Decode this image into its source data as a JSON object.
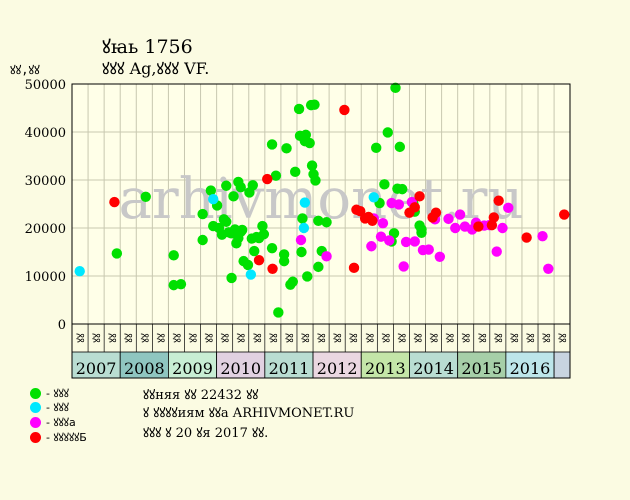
{
  "header": {
    "title": "ꙋꙗь 1756",
    "subtitle": "ꙋꙋꙋ Ag,ꙋꙋꙋ VF.",
    "ylabel": "ꙋꙋ,ꙋꙋ"
  },
  "watermark": "arhivmonet.ru",
  "legend": [
    {
      "label": "- ꙋꙋꙋ",
      "color": "#00e000"
    },
    {
      "label": "- ꙋꙋꙋ",
      "color": "#00e8ff"
    },
    {
      "label": "- ꙋꙋꙋa",
      "color": "#ff00ff"
    },
    {
      "label": "- ꙋꙋꙋꙋꙋБ",
      "color": "#ff0000"
    }
  ],
  "notes": [
    "ꙋꙋняя ꙋꙋ 22432 ꙋꙋ",
    "ꙋ ꙋꙋꙋꙋиям ꙋꙋa ARHIVMONET.RU",
    "ꙋꙋꙋ ꙋ 20 ꙋя 2017 ꙋꙋ."
  ],
  "colors": {
    "background": "#fbfbe2",
    "plot_bg": "#ffffe8",
    "grid": "#c8c8b0",
    "green": "#00e000",
    "cyan": "#00e8ff",
    "magenta": "#ff00ff",
    "red": "#ff0000"
  },
  "chart_data": {
    "type": "scatter",
    "title": "ꙋꙗь 1756",
    "ylabel": "ꙋꙋ,ꙋꙋ",
    "xlim": [
      2006.67,
      2017.0
    ],
    "ylim": [
      0,
      50000
    ],
    "yticks": [
      0,
      10000,
      20000,
      30000,
      40000,
      50000
    ],
    "quarter_labels": [
      "ꙋꙋ",
      "ꙋꙋ",
      "ꙋꙋ"
    ],
    "years": [
      {
        "label": "2007",
        "color": "#b9ddd2"
      },
      {
        "label": "2008",
        "color": "#8fc6c0"
      },
      {
        "label": "2009",
        "color": "#c8eed4"
      },
      {
        "label": "2010",
        "color": "#e1d1e1"
      },
      {
        "label": "2011",
        "color": "#b9ddd2"
      },
      {
        "label": "2012",
        "color": "#ead7e1"
      },
      {
        "label": "2013",
        "color": "#c4e6a8"
      },
      {
        "label": "2014",
        "color": "#b9ddd2"
      },
      {
        "label": "2015",
        "color": "#a6cfa8"
      },
      {
        "label": "2016",
        "color": "#bde6ea"
      }
    ],
    "series": [
      {
        "name": "- ꙋꙋꙋ",
        "color": "#00e000",
        "points": [
          [
            2007.6,
            14700
          ],
          [
            2008.2,
            26500
          ],
          [
            2008.78,
            8100
          ],
          [
            2008.78,
            14300
          ],
          [
            2008.93,
            8300
          ],
          [
            2009.38,
            17500
          ],
          [
            2009.38,
            22900
          ],
          [
            2009.55,
            27800
          ],
          [
            2009.6,
            20400
          ],
          [
            2009.68,
            24700
          ],
          [
            2009.72,
            20000
          ],
          [
            2009.78,
            18600
          ],
          [
            2009.82,
            21800
          ],
          [
            2009.87,
            28800
          ],
          [
            2009.87,
            21300
          ],
          [
            2009.92,
            19100
          ],
          [
            2009.97,
            18900
          ],
          [
            2009.98,
            9600
          ],
          [
            2010.02,
            26600
          ],
          [
            2010.05,
            19700
          ],
          [
            2010.08,
            16800
          ],
          [
            2010.12,
            29600
          ],
          [
            2010.12,
            17900
          ],
          [
            2010.17,
            28500
          ],
          [
            2010.17,
            19200
          ],
          [
            2010.2,
            19600
          ],
          [
            2010.23,
            13100
          ],
          [
            2010.32,
            12300
          ],
          [
            2010.35,
            27400
          ],
          [
            2010.4,
            17800
          ],
          [
            2010.42,
            28900
          ],
          [
            2010.45,
            15200
          ],
          [
            2010.5,
            18100
          ],
          [
            2010.55,
            17900
          ],
          [
            2010.62,
            20400
          ],
          [
            2010.65,
            18700
          ],
          [
            2010.82,
            15800
          ],
          [
            2010.82,
            37400
          ],
          [
            2010.9,
            30900
          ],
          [
            2010.95,
            2400
          ],
          [
            2011.07,
            14500
          ],
          [
            2011.07,
            13100
          ],
          [
            2011.12,
            36600
          ],
          [
            2011.2,
            8200
          ],
          [
            2011.25,
            8800
          ],
          [
            2011.3,
            31700
          ],
          [
            2011.38,
            44800
          ],
          [
            2011.4,
            39200
          ],
          [
            2011.43,
            15000
          ],
          [
            2011.45,
            22000
          ],
          [
            2011.5,
            38100
          ],
          [
            2011.52,
            39400
          ],
          [
            2011.55,
            9900
          ],
          [
            2011.6,
            37700
          ],
          [
            2011.63,
            45600
          ],
          [
            2011.65,
            33000
          ],
          [
            2011.68,
            31200
          ],
          [
            2011.7,
            45700
          ],
          [
            2011.72,
            29900
          ],
          [
            2011.78,
            21500
          ],
          [
            2011.78,
            11900
          ],
          [
            2011.85,
            15200
          ],
          [
            2011.95,
            21200
          ],
          [
            2012.98,
            36700
          ],
          [
            2013.05,
            25200
          ],
          [
            2013.15,
            29100
          ],
          [
            2013.22,
            39900
          ],
          [
            2013.3,
            17200
          ],
          [
            2013.35,
            18900
          ],
          [
            2013.38,
            49200
          ],
          [
            2013.42,
            28200
          ],
          [
            2013.47,
            36900
          ],
          [
            2013.52,
            28100
          ],
          [
            2013.75,
            25100
          ],
          [
            2013.78,
            23400
          ],
          [
            2013.88,
            20500
          ],
          [
            2013.92,
            19700
          ],
          [
            2013.92,
            19000
          ]
        ]
      },
      {
        "name": "- ꙋꙋꙋ",
        "color": "#00e8ff",
        "points": [
          [
            2006.83,
            11000
          ],
          [
            2009.6,
            26000
          ],
          [
            2010.38,
            10300
          ],
          [
            2011.5,
            25300
          ],
          [
            2011.48,
            20000
          ],
          [
            2012.93,
            26400
          ]
        ]
      },
      {
        "name": "- ꙋꙋꙋa",
        "color": "#ff00ff",
        "points": [
          [
            2011.42,
            17500
          ],
          [
            2011.95,
            14100
          ],
          [
            2012.88,
            16200
          ],
          [
            2012.93,
            22000
          ],
          [
            2013.08,
            18200
          ],
          [
            2013.12,
            21000
          ],
          [
            2013.25,
            17400
          ],
          [
            2013.3,
            25200
          ],
          [
            2013.45,
            24900
          ],
          [
            2013.55,
            12000
          ],
          [
            2013.6,
            17100
          ],
          [
            2013.72,
            25400
          ],
          [
            2013.78,
            17200
          ],
          [
            2013.95,
            15400
          ],
          [
            2014.07,
            15500
          ],
          [
            2014.2,
            21800
          ],
          [
            2014.3,
            14000
          ],
          [
            2014.48,
            21900
          ],
          [
            2014.62,
            20000
          ],
          [
            2014.72,
            22800
          ],
          [
            2014.82,
            20300
          ],
          [
            2014.97,
            19700
          ],
          [
            2015.05,
            21100
          ],
          [
            2015.22,
            20500
          ],
          [
            2015.33,
            20600
          ],
          [
            2015.48,
            15100
          ],
          [
            2015.6,
            20000
          ],
          [
            2015.72,
            24200
          ],
          [
            2016.43,
            18300
          ],
          [
            2016.55,
            11500
          ]
        ]
      },
      {
        "name": "- ꙋꙋꙋꙋꙋБ",
        "color": "#ff0000",
        "points": [
          [
            2007.55,
            25400
          ],
          [
            2010.55,
            13300
          ],
          [
            2010.72,
            30200
          ],
          [
            2010.83,
            11500
          ],
          [
            2012.32,
            44600
          ],
          [
            2012.52,
            11700
          ],
          [
            2012.57,
            23800
          ],
          [
            2012.65,
            23500
          ],
          [
            2012.75,
            22000
          ],
          [
            2012.82,
            22300
          ],
          [
            2012.9,
            21500
          ],
          [
            2013.67,
            23200
          ],
          [
            2013.78,
            24300
          ],
          [
            2013.88,
            26600
          ],
          [
            2014.15,
            22200
          ],
          [
            2014.22,
            23200
          ],
          [
            2015.1,
            20300
          ],
          [
            2015.38,
            20600
          ],
          [
            2015.42,
            22200
          ],
          [
            2015.52,
            25700
          ],
          [
            2016.1,
            18000
          ],
          [
            2016.88,
            22800
          ]
        ]
      }
    ]
  }
}
